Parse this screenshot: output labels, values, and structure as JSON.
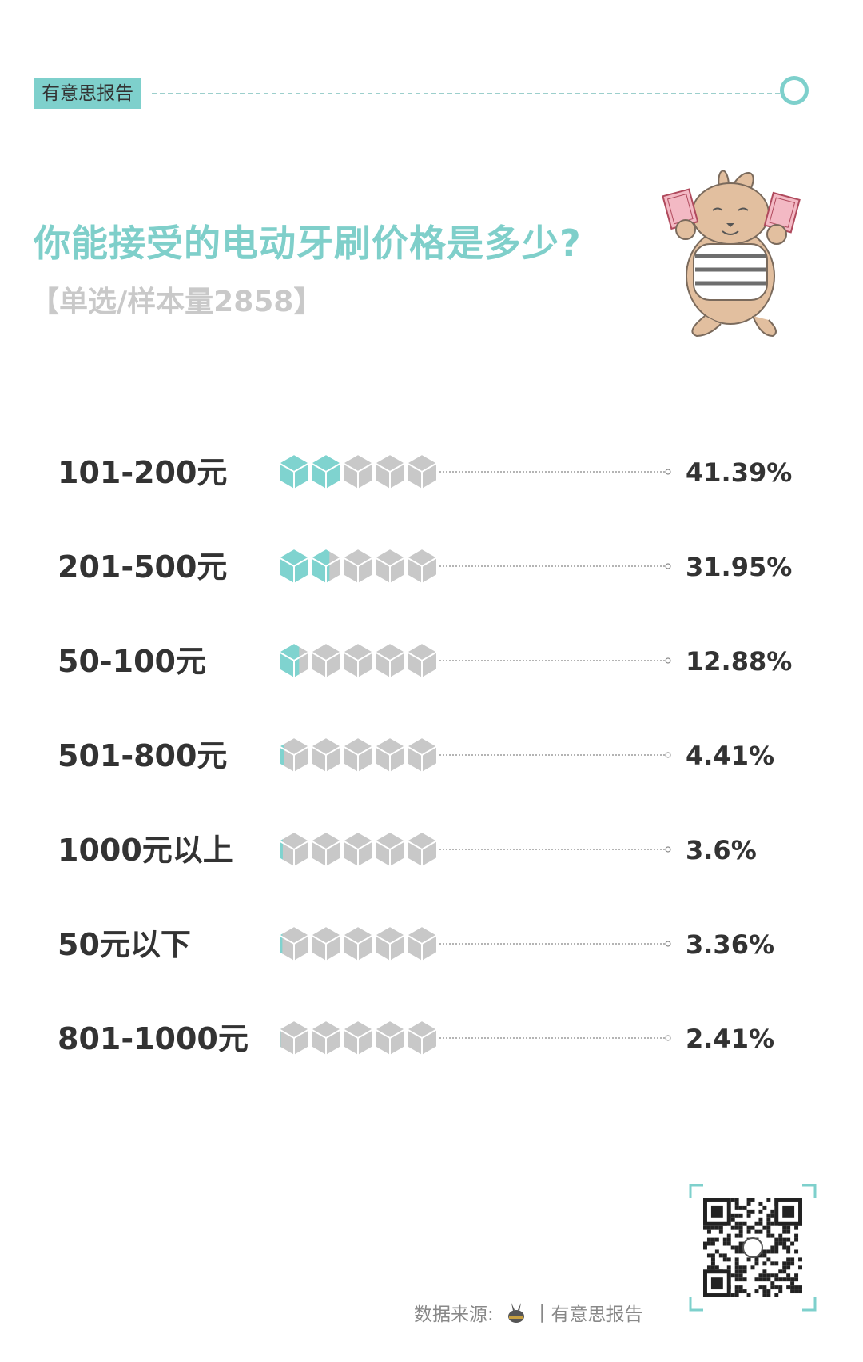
{
  "header": {
    "brand": "有意思报告",
    "accent_color": "#7ed0cc"
  },
  "title": "你能接受的电动牙刷价格是多少?",
  "subtitle": "【单选/样本量2858】",
  "mascot_icon": "rabbit-holding-money-icon",
  "chart_data": {
    "type": "bar",
    "style": "pictorial-cubes",
    "units_per_row": 5,
    "categories": [
      "101-200元",
      "201-500元",
      "50-100元",
      "501-800元",
      "1000元以上",
      "50元以下",
      "801-1000元"
    ],
    "values": [
      41.39,
      31.95,
      12.88,
      4.41,
      3.6,
      3.36,
      2.41
    ],
    "value_labels": [
      "41.39%",
      "31.95%",
      "12.88%",
      "4.41%",
      "3.6%",
      "3.36%",
      "2.41%"
    ],
    "fill_color": "#7fd3cf",
    "empty_color": "#c8c8c8",
    "xlim": [
      0,
      100
    ]
  },
  "footer": {
    "source_label": "数据来源:",
    "source_sep": "|",
    "source_name": "有意思报告",
    "source_logo_icon": "rabbit-logo-icon",
    "qr_icon": "qr-code-icon"
  }
}
